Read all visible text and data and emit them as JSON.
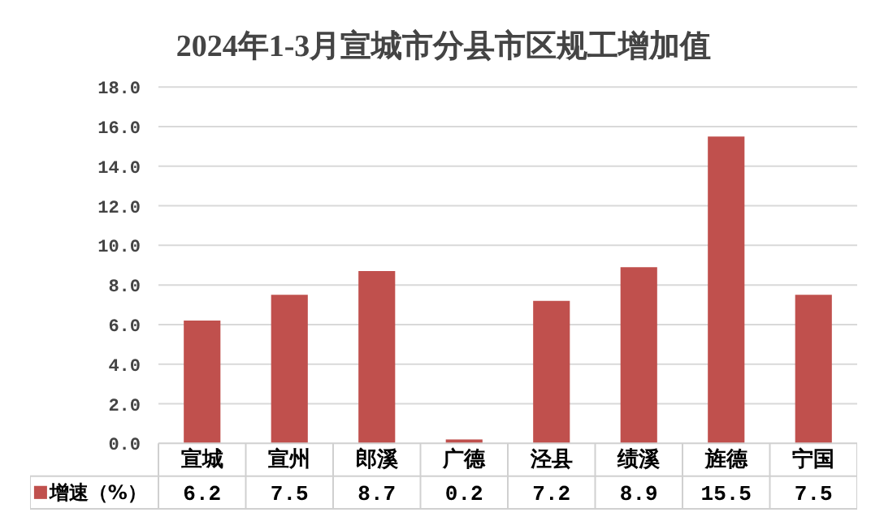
{
  "chart_data": {
    "type": "bar",
    "title": "2024年1-3月宣城市分县市区规工增加值",
    "categories": [
      "宣城",
      "宣州",
      "郎溪",
      "广德",
      "泾县",
      "绩溪",
      "旌德",
      "宁国"
    ],
    "series": [
      {
        "name": "增速（%）",
        "color": "#c0504d",
        "values": [
          6.2,
          7.5,
          8.7,
          0.2,
          7.2,
          8.9,
          15.5,
          7.5
        ]
      }
    ],
    "ylim": [
      0,
      18
    ],
    "yticks": [
      {
        "value": 0,
        "label": "0.0"
      },
      {
        "value": 2,
        "label": "2.0"
      },
      {
        "value": 4,
        "label": "4.0"
      },
      {
        "value": 6,
        "label": "6.0"
      },
      {
        "value": 8,
        "label": "8.0"
      },
      {
        "value": 10,
        "label": "10.0"
      },
      {
        "value": 12,
        "label": "12.0"
      },
      {
        "value": 14,
        "label": "14.0"
      },
      {
        "value": 16,
        "label": "16.0"
      },
      {
        "value": 18,
        "label": "18.0"
      }
    ],
    "grid": "y",
    "legend": "bottom",
    "data_labels": true
  }
}
